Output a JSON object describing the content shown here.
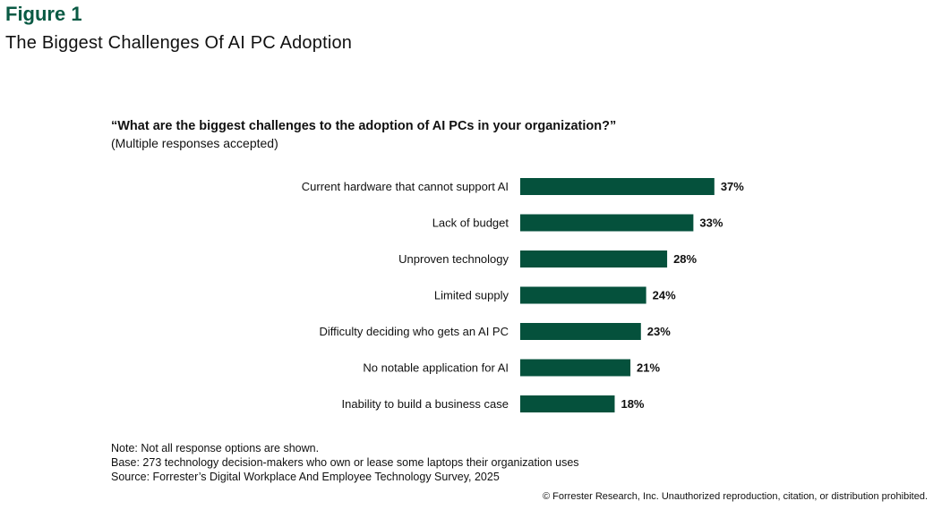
{
  "figure_label": "Figure 1",
  "title": "The Biggest Challenges Of AI PC Adoption",
  "chart_data": {
    "type": "bar",
    "orientation": "horizontal",
    "title": "“What are the biggest challenges to the adoption of AI PCs in your organization?”",
    "subtitle": "(Multiple responses accepted)",
    "categories": [
      "Current hardware that cannot support AI",
      "Lack of budget",
      "Unproven technology",
      "Limited supply",
      "Difficulty deciding who gets an AI PC",
      "No notable application for AI",
      "Inability to build a business case"
    ],
    "values": [
      37,
      33,
      28,
      24,
      23,
      21,
      18
    ],
    "value_labels": [
      "37%",
      "33%",
      "28%",
      "24%",
      "23%",
      "21%",
      "18%"
    ],
    "unit": "%",
    "color": "#05513c",
    "grid": false,
    "xlabel": "",
    "ylabel": ""
  },
  "notes": [
    "Note: Not all response options are shown.",
    "Base: 273 technology decision-makers who own or lease some laptops their organization uses",
    "Source: Forrester’s Digital Workplace And Employee Technology Survey, 2025"
  ],
  "copyright": "© Forrester Research, Inc. Unauthorized reproduction, citation, or distribution prohibited."
}
